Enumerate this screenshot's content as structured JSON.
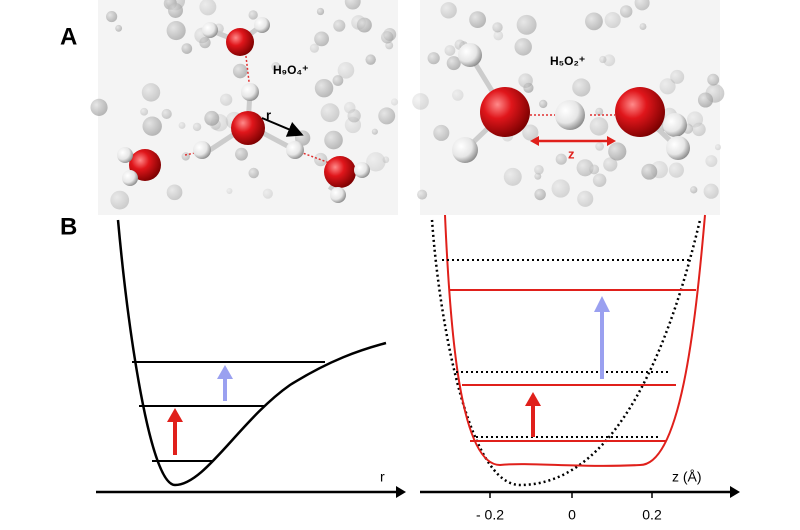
{
  "panel_a": {
    "label": "A",
    "left_molecule": "H₉O₄⁺",
    "right_molecule": "H₅O₂⁺",
    "left_coordinate": "r",
    "right_coordinate": "z"
  },
  "panel_b": {
    "label": "B",
    "left_axis_label": "r",
    "right_axis_label": "z (Å)",
    "right_axis_ticks": [
      "- 0.2",
      "0",
      "0.2"
    ]
  }
}
